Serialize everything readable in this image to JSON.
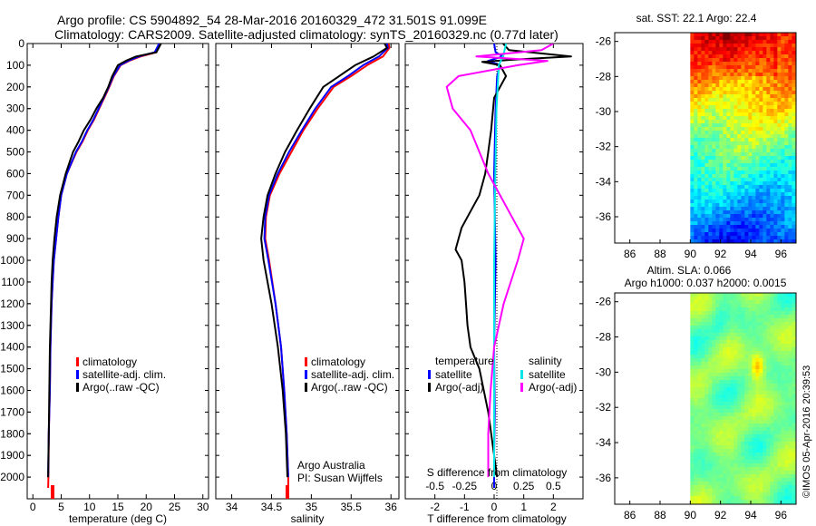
{
  "title": {
    "line1": "Argo profile: CS 5904892_54 28-Mar-2016 20160329_472 31.501S 91.099E",
    "line2": "Climatology: CARS2009. Satellite-adjusted climatology: synTS_20160329.nc (0.77d later)"
  },
  "credit": "©IMOS 05-Apr-2016 20:39:53",
  "colors": {
    "climatology": "#ff0000",
    "satellite_adj": "#0000ff",
    "argo": "#000000",
    "sal_satellite": "#00e5e5",
    "sal_argo": "#ff00ff"
  },
  "chart_data": [
    {
      "type": "line",
      "name": "temperature-profile",
      "xlabel": "temperature (deg C)",
      "ylim": [
        2100,
        0
      ],
      "xlim": [
        -1,
        31
      ],
      "xticks": [
        0,
        5,
        10,
        15,
        20,
        25,
        30
      ],
      "yticks": [
        0,
        100,
        200,
        300,
        400,
        500,
        600,
        700,
        800,
        900,
        1000,
        1100,
        1200,
        1300,
        1400,
        1500,
        1600,
        1700,
        1800,
        1900,
        2000
      ],
      "legend": {
        "placement": "lower-center",
        "entries": [
          "climatology",
          "satellite-adj. clim.",
          "Argo(..raw -QC)"
        ]
      },
      "series": [
        {
          "name": "climatology",
          "x": [
            22.3,
            22.2,
            21.8,
            19,
            17,
            15.5,
            14.3,
            13.5,
            12.6,
            11.7,
            10.8,
            9.7,
            8.8,
            7.7,
            6,
            5,
            4.5,
            4.1,
            3.7,
            3.5,
            3.3,
            3.1,
            3,
            2.8,
            2.75,
            2.7
          ],
          "y": [
            0,
            10,
            40,
            60,
            80,
            100,
            150,
            200,
            250,
            300,
            350,
            400,
            450,
            500,
            600,
            700,
            800,
            900,
            1000,
            1100,
            1200,
            1400,
            1600,
            1800,
            2000,
            2050
          ]
        },
        {
          "name": "satellite-adj. clim.",
          "x": [
            22.2,
            22.1,
            21.5,
            18.7,
            16.8,
            15.4,
            14.2,
            13.4,
            12.5,
            11.6,
            10.7,
            9.6,
            8.7,
            7.6,
            6,
            5,
            4.5,
            4.1,
            3.7,
            3.5,
            3.3,
            3.1,
            3,
            2.8,
            2.7
          ],
          "y": [
            0,
            10,
            40,
            60,
            80,
            100,
            150,
            200,
            250,
            300,
            350,
            400,
            450,
            500,
            600,
            700,
            800,
            900,
            1000,
            1100,
            1200,
            1400,
            1600,
            1800,
            2000
          ]
        },
        {
          "name": "Argo(..raw -QC)",
          "x": [
            22.6,
            22.4,
            21.8,
            18.2,
            16.4,
            15,
            14,
            13.3,
            12.4,
            11.2,
            10.2,
            9,
            8.1,
            7.1,
            5.8,
            4.8,
            4.2,
            3.8,
            3.5,
            3.3,
            3.2,
            3,
            2.9,
            2.8,
            2.7
          ],
          "y": [
            0,
            10,
            40,
            60,
            80,
            100,
            150,
            200,
            250,
            300,
            350,
            400,
            450,
            500,
            600,
            700,
            800,
            900,
            1000,
            1100,
            1200,
            1400,
            1600,
            1800,
            2000
          ]
        }
      ]
    },
    {
      "type": "line",
      "name": "salinity-profile",
      "xlabel": "salinity",
      "ylim": [
        2100,
        0
      ],
      "xlim": [
        33.8,
        36.1
      ],
      "xticks": [
        34,
        34.5,
        35,
        35.5,
        36
      ],
      "xticklabels": [
        "34",
        "34.5",
        "35",
        "35.5",
        "36"
      ],
      "legend": {
        "placement": "lower-center",
        "entries": [
          "climatology",
          "satellite-adj. clim.",
          "Argo(..raw -QC)"
        ]
      },
      "annotation": [
        "Argo Australia",
        "PI: Susan Wijffels"
      ],
      "series": [
        {
          "name": "climatology",
          "x": [
            35.97,
            35.98,
            35.9,
            35.7,
            35.5,
            35.28,
            35.08,
            34.9,
            34.75,
            34.6,
            34.48,
            34.43,
            34.42,
            34.47,
            34.55,
            34.62,
            34.66,
            34.69,
            34.71,
            34.71
          ],
          "y": [
            0,
            20,
            60,
            100,
            150,
            200,
            300,
            400,
            500,
            600,
            700,
            800,
            900,
            1000,
            1200,
            1400,
            1600,
            1800,
            2000,
            2050
          ]
        },
        {
          "name": "satellite-adj. clim.",
          "x": [
            35.95,
            35.96,
            35.85,
            35.65,
            35.46,
            35.25,
            35.05,
            34.88,
            34.72,
            34.58,
            34.47,
            34.42,
            34.41,
            34.46,
            34.55,
            34.62,
            34.66,
            34.69,
            34.71
          ],
          "y": [
            0,
            20,
            60,
            100,
            150,
            200,
            300,
            400,
            500,
            600,
            700,
            800,
            900,
            1000,
            1200,
            1400,
            1600,
            1800,
            2000
          ]
        },
        {
          "name": "Argo(..raw -QC)",
          "x": [
            35.92,
            35.95,
            35.78,
            35.55,
            35.35,
            35.15,
            34.98,
            34.82,
            34.67,
            34.55,
            34.45,
            34.4,
            34.37,
            34.4,
            34.5,
            34.58,
            34.64,
            34.68,
            34.7
          ],
          "y": [
            0,
            20,
            60,
            100,
            150,
            200,
            300,
            400,
            500,
            600,
            700,
            800,
            900,
            1000,
            1200,
            1400,
            1600,
            1800,
            2000
          ]
        }
      ]
    },
    {
      "type": "line",
      "name": "difference-profile",
      "xlabel": "T difference from climatology",
      "xlabel_top": "S difference from climatology",
      "ylim": [
        2100,
        0
      ],
      "xlim": [
        -3,
        3
      ],
      "xticks": [
        -2,
        -1,
        0,
        1,
        2
      ],
      "xticks_top": [
        -0.5,
        -0.25,
        0,
        0.25,
        0.5
      ],
      "xticklabels_top": [
        "-0.5",
        "-0.25",
        "0",
        "0.25",
        "0.5"
      ],
      "legend": {
        "placement": "lower-center",
        "headers": [
          "temperature",
          "salinity"
        ],
        "entries": [
          "satellite",
          "Argo(-adj)",
          "satellite",
          "Argo(-adj)"
        ]
      },
      "series": [
        {
          "name": "satellite",
          "group": "temperature",
          "x": [
            0,
            0.05,
            0.3,
            -0.2,
            0.2,
            0.1,
            0.05,
            0,
            0.05,
            0,
            0.02,
            0,
            0
          ],
          "y": [
            0,
            40,
            60,
            80,
            100,
            150,
            300,
            600,
            1000,
            1400,
            1700,
            1900,
            2050
          ]
        },
        {
          "name": "Argo(-adj)",
          "group": "temperature",
          "x": [
            0.3,
            0.5,
            2.6,
            0.6,
            -0.4,
            0.2,
            0.4,
            0,
            -0.1,
            -0.2,
            -0.3,
            -0.5,
            -0.7,
            -0.9,
            -1.1,
            -1.2,
            -1.3,
            -1.1,
            -1,
            -0.95,
            -0.9,
            -0.8,
            -0.5,
            -0.2,
            0.1
          ],
          "y": [
            0,
            30,
            60,
            75,
            85,
            100,
            150,
            250,
            400,
            500,
            600,
            700,
            750,
            800,
            850,
            900,
            950,
            1000,
            1100,
            1200,
            1300,
            1400,
            1500,
            1700,
            2000
          ]
        },
        {
          "name": "satellite",
          "group": "salinity",
          "x": [
            0.1,
            0.08,
            0.04,
            0.02,
            0.01,
            0,
            0,
            0
          ],
          "y": [
            0,
            50,
            100,
            300,
            600,
            1000,
            1500,
            2000
          ]
        },
        {
          "name": "Argo(-adj)",
          "group": "salinity",
          "x": [
            0.5,
            0.4,
            -0.15,
            0.45,
            0.2,
            -0.3,
            -0.4,
            -0.35,
            -0.2,
            -0.05,
            0.15,
            0.25,
            0.2,
            0.08,
            0,
            -0.03,
            -0.05,
            -0.05
          ],
          "y": [
            0,
            30,
            60,
            80,
            100,
            150,
            200,
            300,
            400,
            600,
            800,
            900,
            1000,
            1200,
            1400,
            1600,
            1800,
            2000
          ]
        }
      ]
    },
    {
      "type": "heatmap",
      "name": "sst-map",
      "title": "sat. SST: 22.1  Argo: 22.4",
      "xlim": [
        85,
        97
      ],
      "ylim": [
        -37.5,
        -25.5
      ],
      "xticks": [
        86,
        88,
        90,
        92,
        94,
        96
      ],
      "yticks": [
        -26,
        -28,
        -30,
        -32,
        -34,
        -36
      ],
      "data_xlim": [
        90,
        97
      ],
      "value_range": [
        18,
        24
      ]
    },
    {
      "type": "heatmap",
      "name": "sla-map",
      "title_lines": [
        "Altim. SLA: 0.066",
        "Argo h1000: 0.037 h2000: 0.0015"
      ],
      "xlim": [
        85,
        97
      ],
      "ylim": [
        -37.5,
        -25.5
      ],
      "xticks": [
        86,
        88,
        90,
        92,
        94,
        96
      ],
      "yticks": [
        -26,
        -28,
        -30,
        -32,
        -34,
        -36
      ],
      "data_xlim": [
        90,
        97
      ]
    }
  ]
}
